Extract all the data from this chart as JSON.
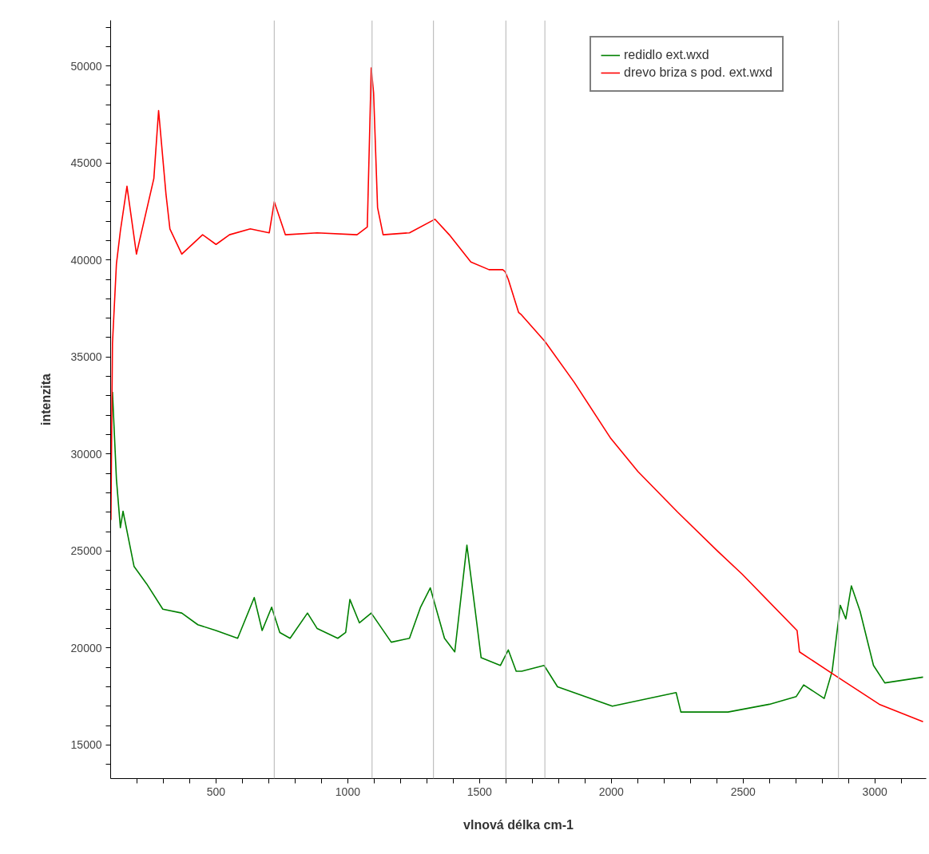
{
  "chart_data": {
    "type": "line",
    "xlabel": "vlnová délka cm-1",
    "ylabel": "intenzita",
    "xlim": [
      100,
      3195
    ],
    "ylim": [
      13270,
      52350
    ],
    "xticks": [
      {
        "value": 200,
        "label": null
      },
      {
        "value": 300,
        "label": null
      },
      {
        "value": 400,
        "label": null
      },
      500,
      {
        "value": 600,
        "label": null
      },
      {
        "value": 700,
        "label": null
      },
      {
        "value": 800,
        "label": null
      },
      {
        "value": 900,
        "label": null
      },
      1000,
      {
        "value": 1100,
        "label": null
      },
      {
        "value": 1200,
        "label": null
      },
      {
        "value": 1300,
        "label": null
      },
      {
        "value": 1400,
        "label": null
      },
      1500,
      {
        "value": 1600,
        "label": null
      },
      {
        "value": 1700,
        "label": null
      },
      {
        "value": 1800,
        "label": null
      },
      {
        "value": 1900,
        "label": null
      },
      2000,
      {
        "value": 2100,
        "label": null
      },
      {
        "value": 2200,
        "label": null
      },
      {
        "value": 2300,
        "label": null
      },
      {
        "value": 2400,
        "label": null
      },
      2500,
      {
        "value": 2600,
        "label": null
      },
      {
        "value": 2700,
        "label": null
      },
      {
        "value": 2800,
        "label": null
      },
      {
        "value": 2900,
        "label": null
      },
      3000,
      {
        "value": 3100,
        "label": null
      }
    ],
    "yticks": [
      {
        "value": 14000,
        "label": null
      },
      15000,
      {
        "value": 16000,
        "label": null
      },
      {
        "value": 17000,
        "label": null
      },
      {
        "value": 18000,
        "label": null
      },
      {
        "value": 19000,
        "label": null
      },
      20000,
      {
        "value": 21000,
        "label": null
      },
      {
        "value": 22000,
        "label": null
      },
      {
        "value": 23000,
        "label": null
      },
      {
        "value": 24000,
        "label": null
      },
      25000,
      {
        "value": 26000,
        "label": null
      },
      {
        "value": 27000,
        "label": null
      },
      {
        "value": 28000,
        "label": null
      },
      {
        "value": 29000,
        "label": null
      },
      30000,
      {
        "value": 31000,
        "label": null
      },
      {
        "value": 32000,
        "label": null
      },
      {
        "value": 33000,
        "label": null
      },
      {
        "value": 34000,
        "label": null
      },
      35000,
      {
        "value": 36000,
        "label": null
      },
      {
        "value": 37000,
        "label": null
      },
      {
        "value": 38000,
        "label": null
      },
      {
        "value": 39000,
        "label": null
      },
      40000,
      {
        "value": 41000,
        "label": null
      },
      {
        "value": 42000,
        "label": null
      },
      {
        "value": 43000,
        "label": null
      },
      {
        "value": 44000,
        "label": null
      },
      45000,
      {
        "value": 46000,
        "label": null
      },
      {
        "value": 47000,
        "label": null
      },
      {
        "value": 48000,
        "label": null
      },
      {
        "value": 49000,
        "label": null
      },
      50000,
      {
        "value": 51000,
        "label": null
      },
      {
        "value": 52000,
        "label": null
      }
    ],
    "grid": false,
    "legend": "top right",
    "marker": "none",
    "line_style": "solid",
    "ref_lines": [
      {
        "axis": "x",
        "value": 721,
        "color": "#c0c0c0"
      },
      {
        "axis": "x",
        "value": 1092,
        "color": "#c0c0c0"
      },
      {
        "axis": "x",
        "value": 1325,
        "color": "#c0c0c0"
      },
      {
        "axis": "x",
        "value": 1600,
        "color": "#c0c0c0"
      },
      {
        "axis": "x",
        "value": 1748,
        "color": "#c0c0c0"
      },
      {
        "axis": "x",
        "value": 2862,
        "color": "#c0c0c0"
      }
    ],
    "series": [
      {
        "name": "redidlo ext.wxd",
        "color": "#008000",
        "x": [
          107,
          122,
          137,
          147,
          189,
          237,
          298,
          370,
          431,
          500,
          582,
          645,
          675,
          711,
          742,
          781,
          847,
          884,
          962,
          992,
          1008,
          1044,
          1089,
          1165,
          1234,
          1276,
          1313,
          1367,
          1406,
          1452,
          1482,
          1506,
          1579,
          1609,
          1639,
          1660,
          1745,
          1796,
          2004,
          2246,
          2264,
          2443,
          2600,
          2702,
          2730,
          2808,
          2838,
          2869,
          2890,
          2911,
          2944,
          2995,
          3038,
          3183
        ],
        "values": [
          33200,
          28700,
          26200,
          27050,
          24200,
          23300,
          22000,
          21800,
          21200,
          20900,
          20500,
          22600,
          20900,
          22100,
          20800,
          20500,
          21800,
          21000,
          20500,
          20800,
          22500,
          21300,
          21800,
          20300,
          20500,
          22100,
          23100,
          20500,
          19800,
          25300,
          22100,
          19500,
          19100,
          19900,
          18800,
          18800,
          19100,
          18000,
          17000,
          17700,
          16700,
          16700,
          17100,
          17500,
          18100,
          17400,
          18800,
          22200,
          21500,
          23200,
          21900,
          19100,
          18200,
          18500
        ]
      },
      {
        "name": "drevo briza s pod. ext.wxd",
        "color": "#ff0000",
        "x": [
          101,
          107,
          122,
          137,
          162,
          198,
          264,
          282,
          310,
          325,
          370,
          449,
          500,
          551,
          630,
          702,
          721,
          763,
          884,
          1035,
          1074,
          1089,
          1098,
          1113,
          1134,
          1234,
          1331,
          1385,
          1467,
          1536,
          1588,
          1597,
          1609,
          1648,
          1657,
          1748,
          1859,
          1998,
          2101,
          2252,
          2403,
          2497,
          2705,
          2714,
          2859,
          3017,
          3183
        ],
        "values": [
          26600,
          35700,
          39800,
          41500,
          43800,
          40300,
          44200,
          47700,
          43400,
          41600,
          40300,
          41300,
          40800,
          41300,
          41600,
          41400,
          43000,
          41300,
          41400,
          41300,
          41700,
          49900,
          48600,
          42700,
          41300,
          41400,
          42100,
          41300,
          39900,
          39500,
          39500,
          39400,
          39000,
          37300,
          37200,
          35800,
          33700,
          30800,
          29100,
          27000,
          25000,
          23800,
          20900,
          19800,
          18500,
          17100,
          16200
        ]
      }
    ]
  }
}
